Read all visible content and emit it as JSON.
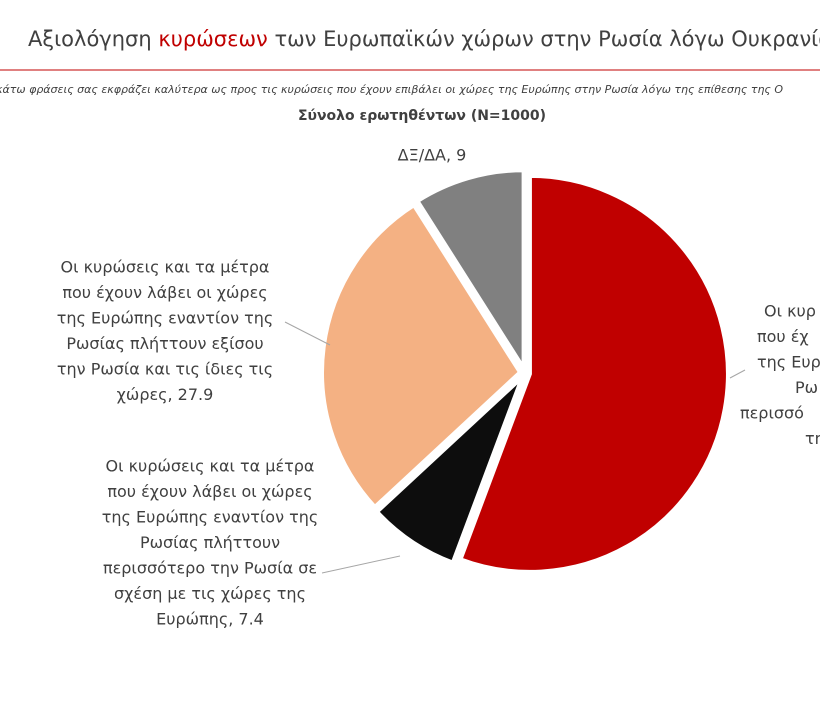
{
  "chart_data": {
    "type": "pie",
    "title_parts": [
      "Αξιολόγηση ",
      "κυρώσεων",
      " των Ευρωπαϊκών χώρων στην Ρωσία λόγω Ουκρανία"
    ],
    "question": "κάτω φράσεις σας εκφράζει καλύτερα ως προς τις κυρώσεις που έχουν επιβάλει οι χώρες της Ευρώπης στην Ρωσία λόγω της επίθεσης της Ο",
    "subtitle": "Σύνολο ερωτηθέντων (N=1000)",
    "values": [
      55.7,
      7.4,
      27.9,
      9
    ],
    "colors": [
      "#c00000",
      "#0d0d0d",
      "#f4b183",
      "#808080"
    ],
    "labels": [
      [
        "Οι κυρ",
        "που έχ",
        "της Ευρ",
        "Ρω",
        "περισσό",
        "τη"
      ],
      [
        "Οι κυρώσεις και τα μέτρα",
        "που έχουν λάβει οι χώρες",
        "της Ευρώπης εναντίον της",
        "Ρωσίας πλήττουν",
        "περισσότερο την Ρωσία σε",
        "σχέση με τις χώρες της",
        "Ευρώπης, 7.4"
      ],
      [
        "Οι κυρώσεις και τα μέτρα",
        "που έχουν λάβει οι χώρες",
        "της Ευρώπης εναντίον της",
        "Ρωσίας πλήττουν εξίσου",
        "την Ρωσία και τις ίδιες τις",
        "χώρες, 27.9"
      ],
      [
        "ΔΞ/ΔΑ, 9"
      ]
    ]
  }
}
